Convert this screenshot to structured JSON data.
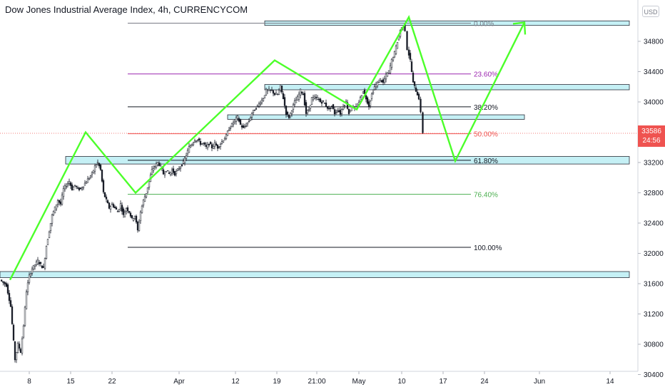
{
  "header": {
    "title": "Dow Jones Industrial Average Index, 4h, CURRENCYCOM",
    "currency_badge": "USD"
  },
  "last_price": {
    "price": "33586",
    "countdown": "24:56",
    "color": "#ef5350"
  },
  "chart_data": {
    "type": "candlestick",
    "y_axis": {
      "range": [
        30250,
        35300
      ],
      "ticks": [
        "34800",
        "34400",
        "34000",
        "33600",
        "33200",
        "32800",
        "32400",
        "32000",
        "31600",
        "31200",
        "30800",
        "30400"
      ]
    },
    "x_axis": {
      "ticks": [
        "8",
        "15",
        "22",
        "Apr",
        "12",
        "19",
        "21:00",
        "May",
        "10",
        "17",
        "24",
        "Jun",
        "14"
      ]
    },
    "fib_levels": [
      {
        "label": "0.00%",
        "price": 35040,
        "color": "#787b86"
      },
      {
        "label": "23.60%",
        "price": 34370,
        "color": "#9c27b0"
      },
      {
        "label": "38.20%",
        "price": 33935,
        "color": "#131722"
      },
      {
        "label": "50.00%",
        "price": 33580,
        "color": "#ef5350"
      },
      {
        "label": "61.80%",
        "price": 33230,
        "color": "#131722"
      },
      {
        "label": "76.40%",
        "price": 32780,
        "color": "#4caf50"
      },
      {
        "label": "100.00%",
        "price": 32080,
        "color": "#131722"
      }
    ],
    "price_path": [
      [
        1,
        31650
      ],
      [
        10,
        31580
      ],
      [
        16,
        31300
      ],
      [
        22,
        30600
      ],
      [
        26,
        30800
      ],
      [
        30,
        30700
      ],
      [
        34,
        31050
      ],
      [
        38,
        31500
      ],
      [
        42,
        31700
      ],
      [
        46,
        31800
      ],
      [
        50,
        31850
      ],
      [
        54,
        31900
      ],
      [
        58,
        31850
      ],
      [
        62,
        31800
      ],
      [
        66,
        32100
      ],
      [
        70,
        32300
      ],
      [
        74,
        32500
      ],
      [
        78,
        32600
      ],
      [
        82,
        32700
      ],
      [
        86,
        32650
      ],
      [
        90,
        32850
      ],
      [
        94,
        32900
      ],
      [
        98,
        32950
      ],
      [
        102,
        32850
      ],
      [
        106,
        32900
      ],
      [
        110,
        32850
      ],
      [
        114,
        32850
      ],
      [
        118,
        32900
      ],
      [
        122,
        32950
      ],
      [
        126,
        33000
      ],
      [
        130,
        33050
      ],
      [
        134,
        33150
      ],
      [
        138,
        33200
      ],
      [
        142,
        33100
      ],
      [
        146,
        32800
      ],
      [
        150,
        32700
      ],
      [
        154,
        32600
      ],
      [
        158,
        32650
      ],
      [
        162,
        32600
      ],
      [
        166,
        32550
      ],
      [
        170,
        32650
      ],
      [
        174,
        32500
      ],
      [
        178,
        32600
      ],
      [
        182,
        32550
      ],
      [
        186,
        32450
      ],
      [
        190,
        32500
      ],
      [
        194,
        32300
      ],
      [
        198,
        32550
      ],
      [
        202,
        32700
      ],
      [
        206,
        32800
      ],
      [
        210,
        32950
      ],
      [
        214,
        33100
      ],
      [
        218,
        33150
      ],
      [
        222,
        33200
      ],
      [
        226,
        33150
      ],
      [
        230,
        33050
      ],
      [
        234,
        33100
      ],
      [
        238,
        33050
      ],
      [
        242,
        33100
      ],
      [
        246,
        33050
      ],
      [
        250,
        33100
      ],
      [
        254,
        33150
      ],
      [
        258,
        33200
      ],
      [
        262,
        33300
      ],
      [
        266,
        33400
      ],
      [
        270,
        33450
      ],
      [
        274,
        33500
      ],
      [
        278,
        33500
      ],
      [
        282,
        33450
      ],
      [
        286,
        33450
      ],
      [
        290,
        33400
      ],
      [
        294,
        33450
      ],
      [
        298,
        33400
      ],
      [
        302,
        33450
      ],
      [
        306,
        33400
      ],
      [
        310,
        33450
      ],
      [
        314,
        33500
      ],
      [
        318,
        33550
      ],
      [
        322,
        33650
      ],
      [
        326,
        33700
      ],
      [
        330,
        33750
      ],
      [
        334,
        33800
      ],
      [
        338,
        33700
      ],
      [
        342,
        33650
      ],
      [
        346,
        33700
      ],
      [
        350,
        33750
      ],
      [
        354,
        33850
      ],
      [
        358,
        33900
      ],
      [
        362,
        33950
      ],
      [
        366,
        34000
      ],
      [
        370,
        34050
      ],
      [
        374,
        34150
      ],
      [
        378,
        34150
      ],
      [
        382,
        34150
      ],
      [
        386,
        34100
      ],
      [
        390,
        34100
      ],
      [
        394,
        34200
      ],
      [
        398,
        34050
      ],
      [
        402,
        33850
      ],
      [
        406,
        33800
      ],
      [
        410,
        33900
      ],
      [
        414,
        34000
      ],
      [
        418,
        34050
      ],
      [
        422,
        34150
      ],
      [
        426,
        34100
      ],
      [
        430,
        33850
      ],
      [
        434,
        33900
      ],
      [
        438,
        34050
      ],
      [
        442,
        34050
      ],
      [
        446,
        34050
      ],
      [
        450,
        34000
      ],
      [
        454,
        34000
      ],
      [
        458,
        33950
      ],
      [
        462,
        33900
      ],
      [
        466,
        33950
      ],
      [
        470,
        33850
      ],
      [
        474,
        33900
      ],
      [
        478,
        33850
      ],
      [
        482,
        33950
      ],
      [
        486,
        34000
      ],
      [
        490,
        33850
      ],
      [
        494,
        33950
      ],
      [
        498,
        33900
      ],
      [
        502,
        33950
      ],
      [
        506,
        34050
      ],
      [
        510,
        34150
      ],
      [
        514,
        34050
      ],
      [
        518,
        33950
      ],
      [
        522,
        34100
      ],
      [
        526,
        34200
      ],
      [
        530,
        34250
      ],
      [
        534,
        34300
      ],
      [
        538,
        34250
      ],
      [
        542,
        34350
      ],
      [
        546,
        34400
      ],
      [
        550,
        34550
      ],
      [
        554,
        34650
      ],
      [
        558,
        34800
      ],
      [
        562,
        34950
      ],
      [
        566,
        35000
      ],
      [
        569,
        34950
      ],
      [
        572,
        34700
      ],
      [
        576,
        34550
      ],
      [
        578,
        34400
      ],
      [
        580,
        34250
      ],
      [
        584,
        34150
      ],
      [
        588,
        34050
      ],
      [
        591,
        33850
      ],
      [
        594,
        33600
      ]
    ],
    "green_projection": [
      [
        14,
        31650
      ],
      [
        120,
        33600
      ],
      [
        190,
        32800
      ],
      [
        385,
        34550
      ],
      [
        500,
        33900
      ],
      [
        573,
        35120
      ],
      [
        638,
        33220
      ],
      [
        735,
        35050
      ]
    ],
    "support_resistance_zones": [
      {
        "x_from": 371,
        "x_to": 882,
        "price_top": 35070,
        "price_bottom": 35010
      },
      {
        "x_from": 371,
        "x_to": 882,
        "price_top": 34230,
        "price_bottom": 34160
      },
      {
        "x_from": 319,
        "x_to": 735,
        "price_top": 33830,
        "price_bottom": 33770
      },
      {
        "x_from": 92,
        "x_to": 882,
        "price_top": 33280,
        "price_bottom": 33180
      },
      {
        "x_from": 0,
        "x_to": 882,
        "price_top": 31760,
        "price_bottom": 31680
      }
    ]
  }
}
